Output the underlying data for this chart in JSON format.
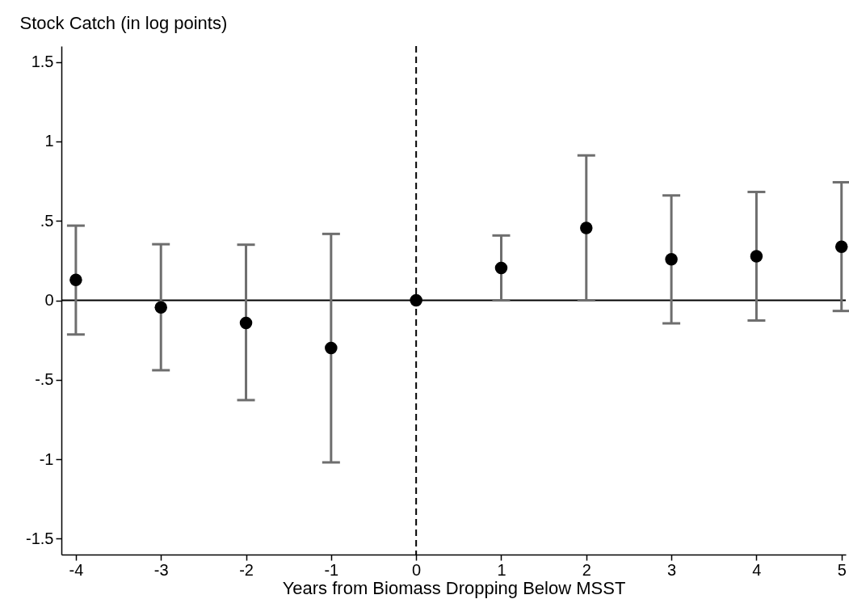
{
  "chart_data": {
    "type": "scatter",
    "xlabel": "Years from Biomass Dropping Below MSST",
    "ylabel": "Stock Catch (in log points)",
    "x": [
      -4,
      -3,
      -2,
      -1,
      0,
      1,
      2,
      3,
      4,
      5
    ],
    "series": [
      {
        "color": "#000000",
        "values": [
          0.128,
          -0.045,
          -0.142,
          -0.3,
          0,
          0.203,
          0.455,
          0.258,
          0.277,
          0.337
        ],
        "errors": [
          [
            -0.215,
            0.47
          ],
          [
            -0.44,
            0.353
          ],
          [
            -0.628,
            0.35
          ],
          [
            -1.02,
            0.418
          ],
          null,
          [
            0,
            0.408
          ],
          [
            0,
            0.912
          ],
          [
            -0.145,
            0.66
          ],
          [
            -0.127,
            0.682
          ],
          [
            -0.067,
            0.743
          ]
        ]
      }
    ],
    "marker": "circle",
    "xlim": [
      -4.17,
      5.05
    ],
    "xticks": [
      -4,
      -3,
      -2,
      -1,
      0,
      1,
      2,
      3,
      4,
      5
    ],
    "ylim": [
      -1.6,
      1.6
    ],
    "yticks": [
      {
        "value": -1.5,
        "label": "-1.5"
      },
      {
        "value": -1,
        "label": "-1"
      },
      {
        "value": -0.5,
        "label": "-.5"
      },
      {
        "value": 0,
        "label": "0"
      },
      {
        "value": 0.5,
        "label": ".5"
      },
      {
        "value": 1,
        "label": "1"
      },
      {
        "value": 1.5,
        "label": "1.5"
      }
    ],
    "ref_lines": [
      {
        "axis": "y",
        "value": 0,
        "color": "#000000",
        "line_style": "solid"
      },
      {
        "axis": "x",
        "value": 0,
        "color": "#000000",
        "line_style": "dashed"
      }
    ],
    "grid": false
  }
}
